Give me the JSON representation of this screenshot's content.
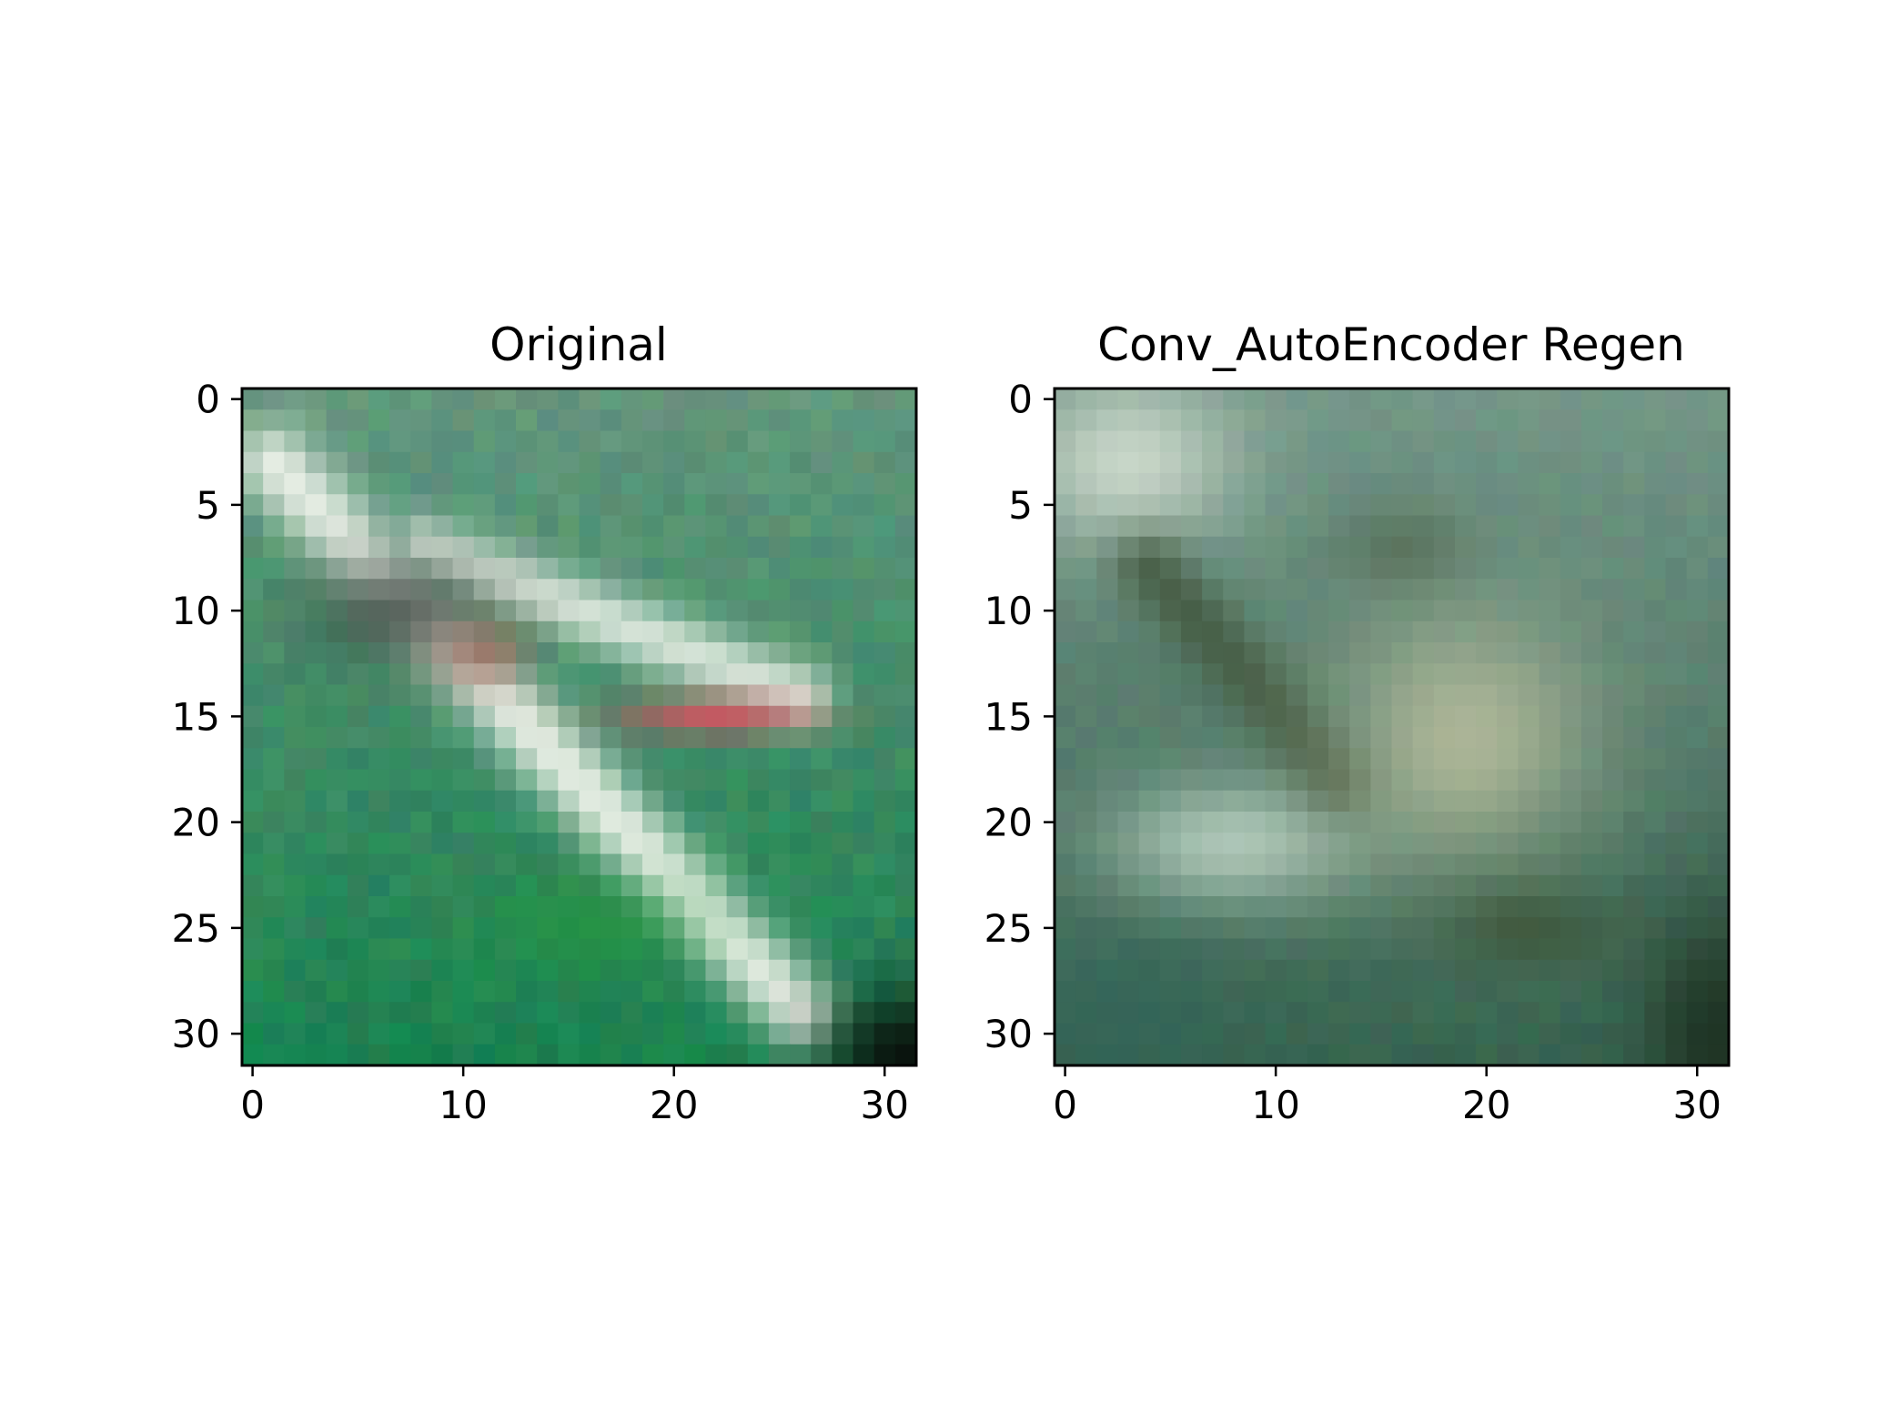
{
  "chart_data": [
    {
      "type": "heatmap",
      "title": "Original",
      "xlim": [
        -0.5,
        31.5
      ],
      "ylim": [
        31.5,
        -0.5
      ],
      "x_ticks": [
        0,
        10,
        20,
        30
      ],
      "y_ticks": [
        0,
        5,
        10,
        15,
        20,
        25,
        30
      ],
      "grid": false,
      "image_width": 32,
      "image_height": 32,
      "dominant_colors": [
        "#5f9a7a",
        "#e6efe6",
        "#1f8a54",
        "#d84a58",
        "#0d1a12"
      ]
    },
    {
      "type": "heatmap",
      "title": "Conv_AutoEncoder Regen",
      "xlim": [
        -0.5,
        31.5
      ],
      "ylim": [
        31.5,
        -0.5
      ],
      "x_ticks": [
        0,
        10,
        20,
        30
      ],
      "y_ticks": [
        0,
        5,
        10,
        15,
        20,
        25,
        30
      ],
      "grid": false,
      "image_width": 32,
      "image_height": 32,
      "dominant_colors": [
        "#7fa08e",
        "#d8e2d4",
        "#3d5a3e",
        "#c9cba6",
        "#1a2418"
      ]
    }
  ]
}
